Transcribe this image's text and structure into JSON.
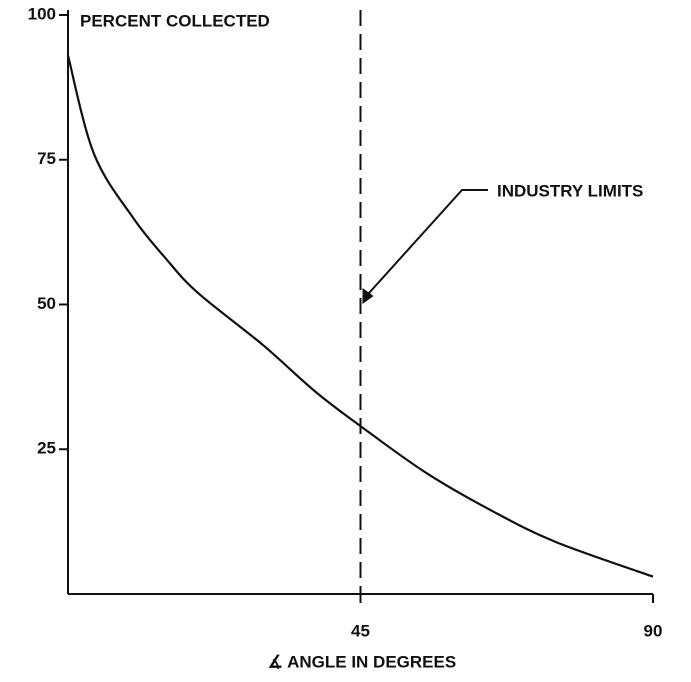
{
  "chart_data": {
    "type": "line",
    "y_label": "PERCENT COLLECTED",
    "x_label": "∡ ANGLE IN DEGREES",
    "x": [
      0,
      4,
      10,
      15,
      20,
      30,
      38,
      45,
      55,
      65,
      75,
      90
    ],
    "series": [
      {
        "color": "#111111",
        "values": [
          93,
          76,
          65,
          58,
          52,
          43,
          35,
          29,
          21,
          14.5,
          9,
          3
        ]
      }
    ],
    "xlim": [
      0,
      90
    ],
    "xticks": [
      45,
      90
    ],
    "ylim": [
      0,
      100
    ],
    "yticks": [
      25,
      50,
      75,
      100
    ],
    "grid": false,
    "vline": {
      "x": 45,
      "label": "INDUSTRY LIMITS"
    }
  }
}
